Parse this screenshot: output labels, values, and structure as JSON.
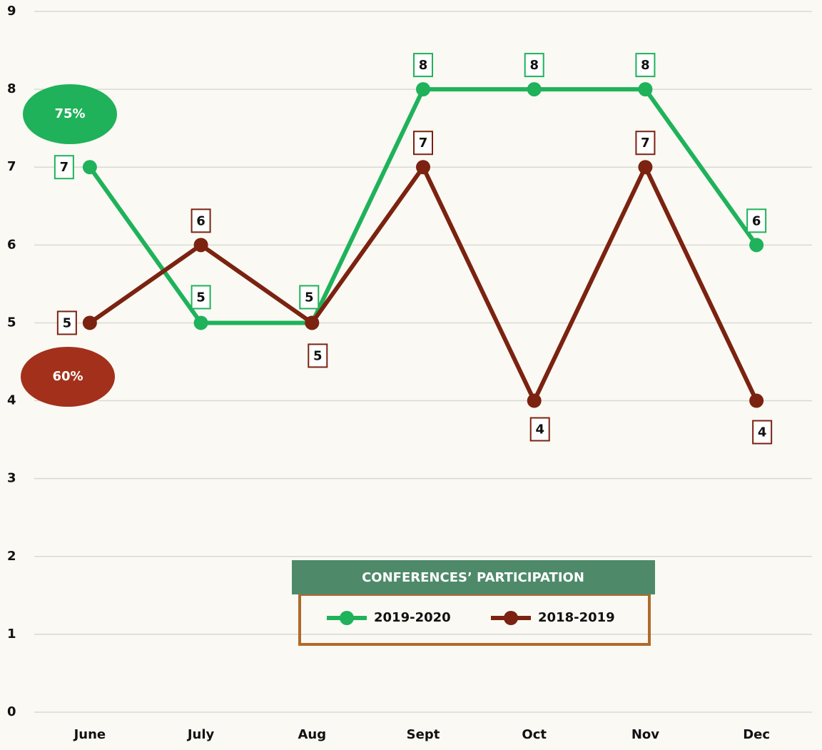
{
  "chart_data": {
    "type": "line",
    "title": "CONFERENCES’ PARTICIPATION",
    "categories": [
      "June",
      "July",
      "Aug",
      "Sept",
      "Oct",
      "Nov",
      "Dec"
    ],
    "series": [
      {
        "name": "2019-2020",
        "color": "#1fb25a",
        "values": [
          7,
          5,
          5,
          8,
          8,
          8,
          6
        ]
      },
      {
        "name": "2018-2019",
        "color": "#7b2210",
        "values": [
          5,
          6,
          5,
          7,
          4,
          7,
          4
        ]
      }
    ],
    "annotations": [
      {
        "text": "75%",
        "color": "#1fb25a"
      },
      {
        "text": "60%",
        "color": "#a3301a"
      }
    ],
    "ylim": [
      0,
      9
    ],
    "yticks": [
      0,
      1,
      2,
      3,
      4,
      5,
      6,
      7,
      8,
      9
    ],
    "grid": true
  }
}
